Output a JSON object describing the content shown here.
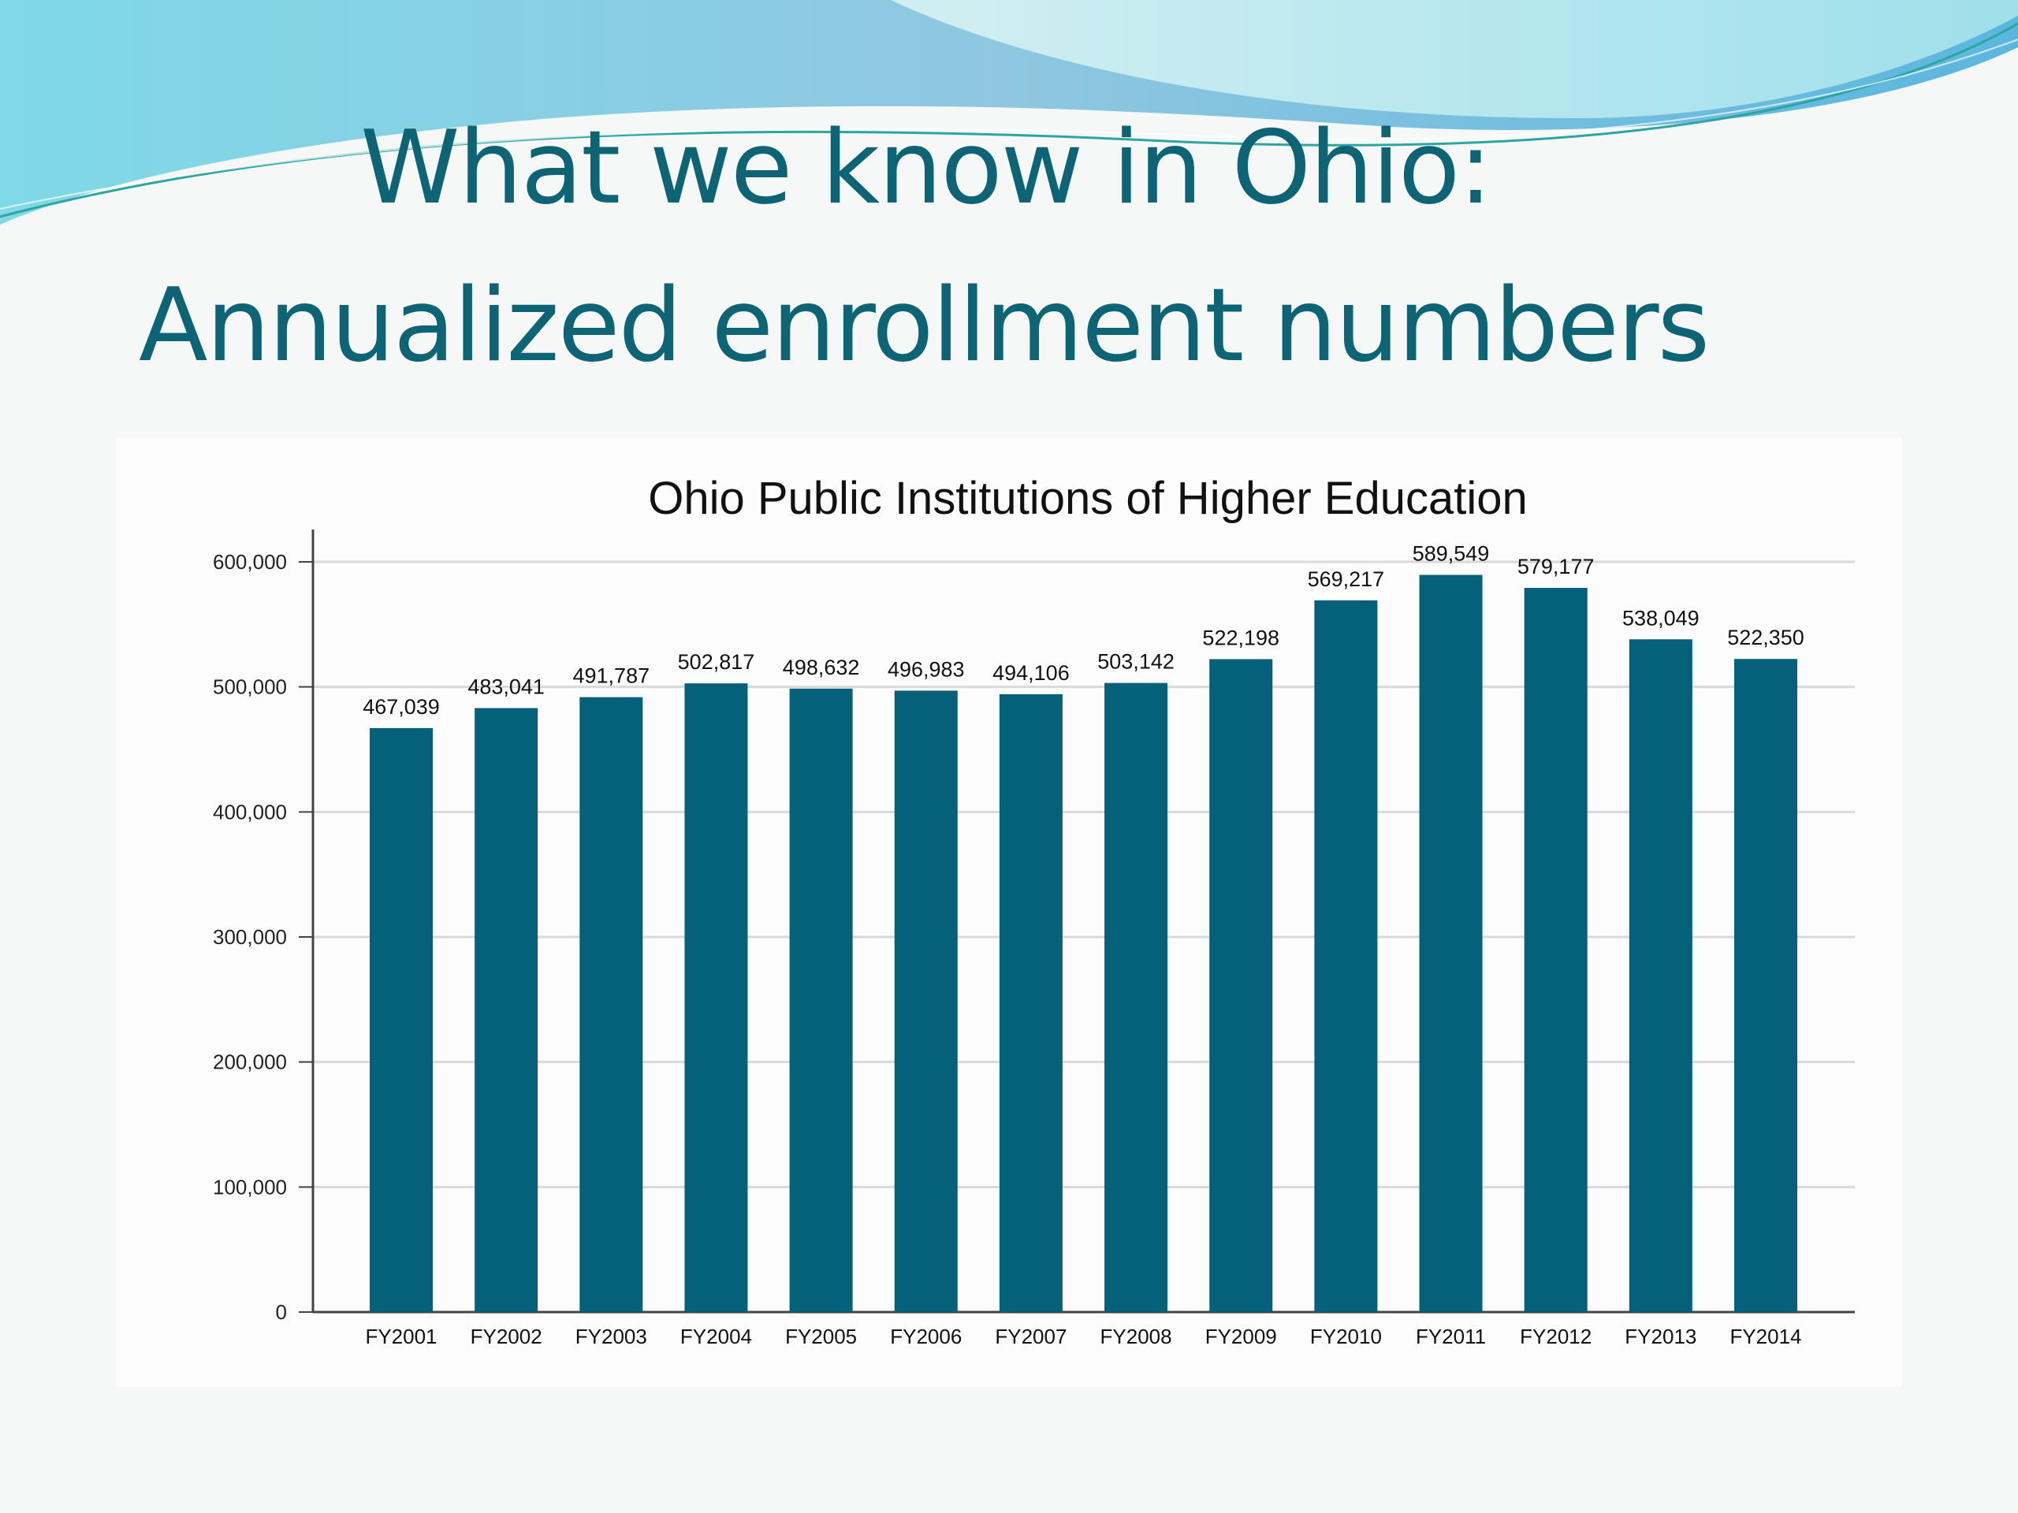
{
  "slide": {
    "title_line1": "What we know in Ohio:",
    "title_line2": "Annualized enrollment numbers"
  },
  "colors": {
    "bar": "#05607a",
    "title": "#0d6475",
    "grid": "#d9d9d9"
  },
  "chart_data": {
    "type": "bar",
    "title": "Ohio Public Institutions of Higher Education",
    "xlabel": "",
    "ylabel": "",
    "categories": [
      "FY2001",
      "FY2002",
      "FY2003",
      "FY2004",
      "FY2005",
      "FY2006",
      "FY2007",
      "FY2008",
      "FY2009",
      "FY2010",
      "FY2011",
      "FY2012",
      "FY2013",
      "FY2014"
    ],
    "values": [
      467039,
      483041,
      491787,
      502817,
      498632,
      496983,
      494106,
      503142,
      522198,
      569217,
      589549,
      579177,
      538049,
      522350
    ],
    "value_labels": [
      "467,039",
      "483,041",
      "491,787",
      "502,817",
      "498,632",
      "496,983",
      "494,106",
      "503,142",
      "522,198",
      "569,217",
      "589,549",
      "579,177",
      "538,049",
      "522,350"
    ],
    "ylim": [
      0,
      600000
    ],
    "yticks": [
      0,
      100000,
      200000,
      300000,
      400000,
      500000,
      600000
    ],
    "ytick_labels": [
      "0",
      "100,000",
      "200,000",
      "300,000",
      "400,000",
      "500,000",
      "600,000"
    ],
    "grid": true,
    "legend": "none"
  }
}
